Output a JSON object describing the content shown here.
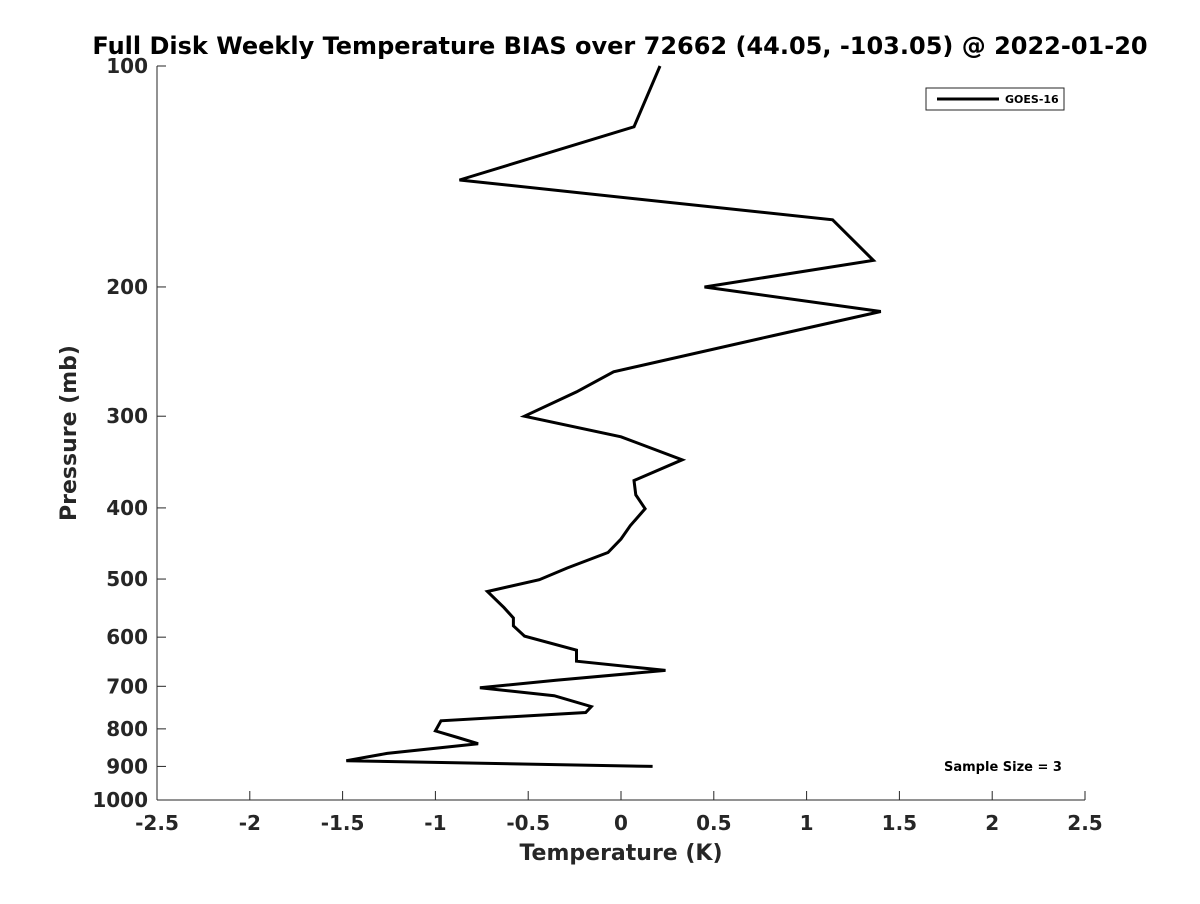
{
  "chart_data": {
    "type": "line",
    "title": "Full Disk Weekly Temperature BIAS over 72662 (44.05, -103.05) @ 2022-01-20",
    "xlabel": "Temperature (K)",
    "ylabel": "Pressure (mb)",
    "xlim": [
      -2.5,
      2.5
    ],
    "ylim": [
      1000,
      100
    ],
    "y_scale": "log",
    "y_reversed": true,
    "grid": false,
    "x_ticks": [
      -2.5,
      -2,
      -1.5,
      -1,
      -0.5,
      0,
      0.5,
      1,
      1.5,
      2,
      2.5
    ],
    "x_tick_labels": [
      "-2.5",
      "-2",
      "-1.5",
      "-1",
      "-0.5",
      "0",
      "0.5",
      "1",
      "1.5",
      "2",
      "2.5"
    ],
    "y_ticks": [
      100,
      200,
      300,
      400,
      500,
      600,
      700,
      800,
      900,
      1000
    ],
    "y_tick_labels": [
      "100",
      "200",
      "300",
      "400",
      "500",
      "600",
      "700",
      "800",
      "900",
      "1000"
    ],
    "legend_position": "top-right",
    "series": [
      {
        "name": "GOES-16",
        "color": "#000000",
        "points": [
          {
            "t": 0.21,
            "p": 100
          },
          {
            "t": 0.07,
            "p": 121
          },
          {
            "t": -0.87,
            "p": 143
          },
          {
            "t": 1.14,
            "p": 162
          },
          {
            "t": 1.36,
            "p": 184
          },
          {
            "t": 0.45,
            "p": 200
          },
          {
            "t": 1.4,
            "p": 216
          },
          {
            "t": 0.82,
            "p": 233
          },
          {
            "t": -0.04,
            "p": 261
          },
          {
            "t": -0.24,
            "p": 278
          },
          {
            "t": -0.52,
            "p": 300
          },
          {
            "t": 0.0,
            "p": 320
          },
          {
            "t": 0.33,
            "p": 344
          },
          {
            "t": 0.07,
            "p": 367
          },
          {
            "t": 0.08,
            "p": 384
          },
          {
            "t": 0.13,
            "p": 401
          },
          {
            "t": 0.05,
            "p": 423
          },
          {
            "t": 0.0,
            "p": 441
          },
          {
            "t": -0.07,
            "p": 460
          },
          {
            "t": -0.29,
            "p": 483
          },
          {
            "t": -0.44,
            "p": 501
          },
          {
            "t": -0.72,
            "p": 520
          },
          {
            "t": -0.63,
            "p": 547
          },
          {
            "t": -0.58,
            "p": 565
          },
          {
            "t": -0.58,
            "p": 579
          },
          {
            "t": -0.52,
            "p": 598
          },
          {
            "t": -0.24,
            "p": 625
          },
          {
            "t": -0.24,
            "p": 647
          },
          {
            "t": 0.24,
            "p": 666
          },
          {
            "t": -0.35,
            "p": 687
          },
          {
            "t": -0.76,
            "p": 703
          },
          {
            "t": -0.36,
            "p": 721
          },
          {
            "t": -0.16,
            "p": 746
          },
          {
            "t": -0.19,
            "p": 760
          },
          {
            "t": -0.97,
            "p": 780
          },
          {
            "t": -1.0,
            "p": 805
          },
          {
            "t": -0.88,
            "p": 822
          },
          {
            "t": -0.77,
            "p": 838
          },
          {
            "t": -1.26,
            "p": 864
          },
          {
            "t": -1.48,
            "p": 884
          },
          {
            "t": 0.17,
            "p": 900
          }
        ]
      }
    ],
    "annotations": [
      {
        "text": "Sample Size = 3",
        "position": "bottom-right"
      }
    ]
  }
}
